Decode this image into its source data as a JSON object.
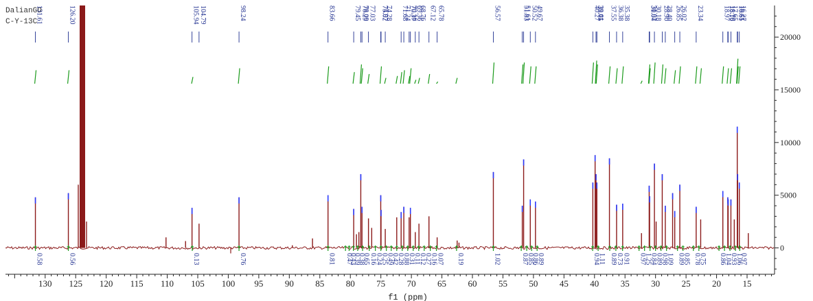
{
  "header": {
    "line1": "DalianGD",
    "line2": "C-Y-13C"
  },
  "chart_data": {
    "type": "line",
    "title": "",
    "xlabel": "f1 (ppm)",
    "ylabel": "",
    "x_reversed": true,
    "xlim": [
      136.5,
      10.5
    ],
    "ylim": [
      -2500,
      23000
    ],
    "x_ticks": [
      130,
      125,
      120,
      115,
      110,
      105,
      100,
      95,
      90,
      85,
      80,
      75,
      70,
      65,
      60,
      55,
      50,
      45,
      40,
      35,
      30,
      25,
      20,
      15
    ],
    "x_tick_labels": [
      "130",
      "125",
      "120",
      "115",
      "110",
      "105",
      "100",
      "95",
      "90",
      "85",
      "80",
      "75",
      "70",
      "65",
      "60",
      "55",
      "50",
      "45",
      "40",
      "35",
      "30",
      "25",
      "20",
      "15"
    ],
    "y_ticks": [
      0,
      5000,
      10000,
      15000,
      20000
    ],
    "y_tick_labels": [
      "0",
      "5000",
      "10000",
      "15000",
      "20000"
    ],
    "grid": false,
    "colors": {
      "spectrum": "#8b1a1a",
      "peak_label": "#1f2f8f",
      "peak_marker": "#2b3cff",
      "integral": "#1a9a1a",
      "integral_label": "#1f2f8f"
    },
    "solvent_peak": {
      "x": 123.9,
      "y": 30000
    },
    "peaks": [
      {
        "x": 131.6,
        "y": 4800
      },
      {
        "x": 126.2,
        "y": 5200
      },
      {
        "x": 105.94,
        "y": 3800
      },
      {
        "x": 104.79,
        "y": 2300
      },
      {
        "x": 98.24,
        "y": 4800
      },
      {
        "x": 110.2,
        "y": 1000
      },
      {
        "x": 107.0,
        "y": 650
      },
      {
        "x": 89.5,
        "y": 250
      },
      {
        "x": 86.2,
        "y": 900
      },
      {
        "x": 83.66,
        "y": 5000
      },
      {
        "x": 79.45,
        "y": 3700
      },
      {
        "x": 79.0,
        "y": 1300
      },
      {
        "x": 78.6,
        "y": 1500
      },
      {
        "x": 78.29,
        "y": 7000
      },
      {
        "x": 78.09,
        "y": 3900
      },
      {
        "x": 77.03,
        "y": 2800
      },
      {
        "x": 76.5,
        "y": 1900
      },
      {
        "x": 75.02,
        "y": 5000
      },
      {
        "x": 74.97,
        "y": 3600
      },
      {
        "x": 74.28,
        "y": 1800
      },
      {
        "x": 72.4,
        "y": 2900
      },
      {
        "x": 71.68,
        "y": 3400
      },
      {
        "x": 71.24,
        "y": 3900
      },
      {
        "x": 70.37,
        "y": 2900
      },
      {
        "x": 70.16,
        "y": 3800
      },
      {
        "x": 69.36,
        "y": 1500
      },
      {
        "x": 68.76,
        "y": 2300
      },
      {
        "x": 67.12,
        "y": 3000
      },
      {
        "x": 65.78,
        "y": 1000
      },
      {
        "x": 62.5,
        "y": 700
      },
      {
        "x": 62.2,
        "y": 500
      },
      {
        "x": 56.57,
        "y": 7200
      },
      {
        "x": 51.83,
        "y": 4000
      },
      {
        "x": 51.61,
        "y": 8400
      },
      {
        "x": 50.52,
        "y": 4600
      },
      {
        "x": 49.67,
        "y": 4400
      },
      {
        "x": 40.27,
        "y": 6200
      },
      {
        "x": 39.9,
        "y": 8800
      },
      {
        "x": 39.75,
        "y": 7000
      },
      {
        "x": 39.61,
        "y": 6200
      },
      {
        "x": 37.55,
        "y": 8500
      },
      {
        "x": 36.38,
        "y": 4100
      },
      {
        "x": 35.38,
        "y": 4200
      },
      {
        "x": 32.3,
        "y": 1400
      },
      {
        "x": 31.04,
        "y": 5900
      },
      {
        "x": 30.97,
        "y": 4900
      },
      {
        "x": 30.18,
        "y": 8000
      },
      {
        "x": 29.9,
        "y": 2500
      },
      {
        "x": 28.9,
        "y": 7000
      },
      {
        "x": 28.4,
        "y": 4000
      },
      {
        "x": 27.2,
        "y": 5200
      },
      {
        "x": 26.85,
        "y": 3500
      },
      {
        "x": 26.02,
        "y": 6000
      },
      {
        "x": 23.34,
        "y": 3900
      },
      {
        "x": 22.6,
        "y": 2700
      },
      {
        "x": 18.97,
        "y": 5400
      },
      {
        "x": 18.16,
        "y": 4800
      },
      {
        "x": 18.1,
        "y": 4600
      },
      {
        "x": 17.65,
        "y": 4600
      },
      {
        "x": 17.1,
        "y": 2700
      },
      {
        "x": 16.61,
        "y": 11500
      },
      {
        "x": 16.55,
        "y": 7000
      },
      {
        "x": 16.27,
        "y": 6200
      },
      {
        "x": 14.8,
        "y": 1400
      }
    ],
    "peak_labels": [
      {
        "x": 131.61,
        "text": "131.61"
      },
      {
        "x": 126.2,
        "text": "126.20"
      },
      {
        "x": 105.94,
        "text": "105.94"
      },
      {
        "x": 104.79,
        "text": "104.79"
      },
      {
        "x": 98.24,
        "text": "98.24"
      },
      {
        "x": 83.66,
        "text": "83.66"
      },
      {
        "x": 79.45,
        "text": "79.45"
      },
      {
        "x": 78.29,
        "text": "78.29"
      },
      {
        "x": 78.09,
        "text": "78.09"
      },
      {
        "x": 77.03,
        "text": "77.03"
      },
      {
        "x": 75.02,
        "text": "75.02"
      },
      {
        "x": 74.97,
        "text": "74.97"
      },
      {
        "x": 74.28,
        "text": "74.28"
      },
      {
        "x": 71.68,
        "text": "71.68"
      },
      {
        "x": 71.24,
        "text": "71.24"
      },
      {
        "x": 70.37,
        "text": "70.37"
      },
      {
        "x": 70.16,
        "text": "70.16"
      },
      {
        "x": 69.36,
        "text": "69.36"
      },
      {
        "x": 68.76,
        "text": "68.76"
      },
      {
        "x": 67.12,
        "text": "67.12"
      },
      {
        "x": 65.78,
        "text": "65.78"
      },
      {
        "x": 56.57,
        "text": "56.57"
      },
      {
        "x": 51.83,
        "text": "51.83"
      },
      {
        "x": 51.61,
        "text": "51.61"
      },
      {
        "x": 50.52,
        "text": "50.52"
      },
      {
        "x": 49.67,
        "text": "49.67"
      },
      {
        "x": 40.27,
        "text": "40.27"
      },
      {
        "x": 39.75,
        "text": "39.75"
      },
      {
        "x": 39.61,
        "text": "39.61"
      },
      {
        "x": 37.55,
        "text": "37.55"
      },
      {
        "x": 36.38,
        "text": "36.38"
      },
      {
        "x": 35.38,
        "text": "35.38"
      },
      {
        "x": 31.04,
        "text": "31.04"
      },
      {
        "x": 30.97,
        "text": "30.97"
      },
      {
        "x": 30.18,
        "text": "30.18"
      },
      {
        "x": 28.9,
        "text": "28.90"
      },
      {
        "x": 28.4,
        "text": "28.40"
      },
      {
        "x": 26.85,
        "text": "26.85"
      },
      {
        "x": 26.02,
        "text": "26.02"
      },
      {
        "x": 23.34,
        "text": "23.34"
      },
      {
        "x": 18.97,
        "text": "18.97"
      },
      {
        "x": 18.16,
        "text": "18.16"
      },
      {
        "x": 18.1,
        "text": "18.10"
      },
      {
        "x": 17.65,
        "text": "17.65"
      },
      {
        "x": 16.61,
        "text": "16.61"
      },
      {
        "x": 16.55,
        "text": "16.55"
      },
      {
        "x": 16.27,
        "text": "16.27"
      }
    ],
    "integral_marks": [
      {
        "x": 131.6,
        "h": 0.7
      },
      {
        "x": 126.2,
        "h": 0.7
      },
      {
        "x": 105.9,
        "h": 0.35
      },
      {
        "x": 98.24,
        "h": 0.8
      },
      {
        "x": 83.66,
        "h": 0.9
      },
      {
        "x": 79.45,
        "h": 0.6
      },
      {
        "x": 78.29,
        "h": 1.0
      },
      {
        "x": 78.09,
        "h": 0.8
      },
      {
        "x": 77.03,
        "h": 0.5
      },
      {
        "x": 75.02,
        "h": 0.9
      },
      {
        "x": 74.28,
        "h": 0.3
      },
      {
        "x": 72.4,
        "h": 0.4
      },
      {
        "x": 71.68,
        "h": 0.6
      },
      {
        "x": 71.24,
        "h": 0.7
      },
      {
        "x": 70.37,
        "h": 0.4
      },
      {
        "x": 70.16,
        "h": 0.8
      },
      {
        "x": 69.36,
        "h": 0.2
      },
      {
        "x": 68.76,
        "h": 0.3
      },
      {
        "x": 67.12,
        "h": 0.5
      },
      {
        "x": 65.78,
        "h": 0.1
      },
      {
        "x": 62.6,
        "h": 0.3
      },
      {
        "x": 56.57,
        "h": 1.1
      },
      {
        "x": 51.83,
        "h": 1.0
      },
      {
        "x": 51.61,
        "h": 1.1
      },
      {
        "x": 50.52,
        "h": 0.9
      },
      {
        "x": 49.67,
        "h": 0.9
      },
      {
        "x": 40.27,
        "h": 1.1
      },
      {
        "x": 39.75,
        "h": 1.2
      },
      {
        "x": 39.61,
        "h": 1.0
      },
      {
        "x": 37.55,
        "h": 0.9
      },
      {
        "x": 36.38,
        "h": 0.8
      },
      {
        "x": 35.38,
        "h": 0.9
      },
      {
        "x": 32.3,
        "h": 0.15
      },
      {
        "x": 31.04,
        "h": 1.0
      },
      {
        "x": 30.97,
        "h": 0.8
      },
      {
        "x": 30.18,
        "h": 1.1
      },
      {
        "x": 28.9,
        "h": 1.0
      },
      {
        "x": 28.4,
        "h": 0.8
      },
      {
        "x": 26.85,
        "h": 0.7
      },
      {
        "x": 26.02,
        "h": 0.9
      },
      {
        "x": 23.34,
        "h": 0.9
      },
      {
        "x": 22.6,
        "h": 0.8
      },
      {
        "x": 18.97,
        "h": 0.9
      },
      {
        "x": 18.16,
        "h": 0.8
      },
      {
        "x": 17.65,
        "h": 0.8
      },
      {
        "x": 16.61,
        "h": 1.3
      },
      {
        "x": 16.55,
        "h": 0.9
      },
      {
        "x": 16.27,
        "h": 0.9
      }
    ],
    "integral_labels": [
      {
        "x": 131.6,
        "text": "0.58"
      },
      {
        "x": 126.2,
        "text": "0.56"
      },
      {
        "x": 105.9,
        "text": "0.13"
      },
      {
        "x": 98.24,
        "text": "0.76"
      },
      {
        "x": 83.66,
        "text": "0.81"
      },
      {
        "x": 80.8,
        "text": "0.47"
      },
      {
        "x": 80.2,
        "text": "0.43"
      },
      {
        "x": 79.5,
        "text": "0.39"
      },
      {
        "x": 78.8,
        "text": "0.38"
      },
      {
        "x": 78.0,
        "text": "0.65"
      },
      {
        "x": 76.9,
        "text": "0.16"
      },
      {
        "x": 75.9,
        "text": "0.24"
      },
      {
        "x": 75.0,
        "text": "0.25"
      },
      {
        "x": 74.1,
        "text": "0.49"
      },
      {
        "x": 73.3,
        "text": "0.42"
      },
      {
        "x": 72.4,
        "text": "0.28"
      },
      {
        "x": 71.5,
        "text": "0.88"
      },
      {
        "x": 70.6,
        "text": "0.31"
      },
      {
        "x": 69.7,
        "text": "0.11"
      },
      {
        "x": 68.8,
        "text": "0.12"
      },
      {
        "x": 67.9,
        "text": "0.27"
      },
      {
        "x": 66.9,
        "text": "0.16"
      },
      {
        "x": 65.9,
        "text": "0.07"
      },
      {
        "x": 62.6,
        "text": "0.19"
      },
      {
        "x": 56.57,
        "text": "1.02"
      },
      {
        "x": 52.0,
        "text": "0.87"
      },
      {
        "x": 51.1,
        "text": "0.85"
      },
      {
        "x": 50.3,
        "text": "0.86"
      },
      {
        "x": 49.4,
        "text": "0.89"
      },
      {
        "x": 40.3,
        "text": "0.94"
      },
      {
        "x": 39.4,
        "text": "1.11"
      },
      {
        "x": 37.5,
        "text": "0.89"
      },
      {
        "x": 36.5,
        "text": "0.73"
      },
      {
        "x": 35.4,
        "text": "0.91"
      },
      {
        "x": 32.7,
        "text": "0.97"
      },
      {
        "x": 31.8,
        "text": "1.25"
      },
      {
        "x": 30.9,
        "text": "0.84"
      },
      {
        "x": 30.0,
        "text": "0.89"
      },
      {
        "x": 29.1,
        "text": "0.98"
      },
      {
        "x": 28.2,
        "text": "1.09"
      },
      {
        "x": 26.4,
        "text": "0.89"
      },
      {
        "x": 25.5,
        "text": "0.85"
      },
      {
        "x": 23.8,
        "text": "0.78"
      },
      {
        "x": 22.9,
        "text": "0.75"
      },
      {
        "x": 19.6,
        "text": "0.86"
      },
      {
        "x": 18.7,
        "text": "1.04"
      },
      {
        "x": 17.8,
        "text": "0.93"
      },
      {
        "x": 16.9,
        "text": "1.06"
      },
      {
        "x": 16.2,
        "text": "0.97"
      }
    ]
  }
}
